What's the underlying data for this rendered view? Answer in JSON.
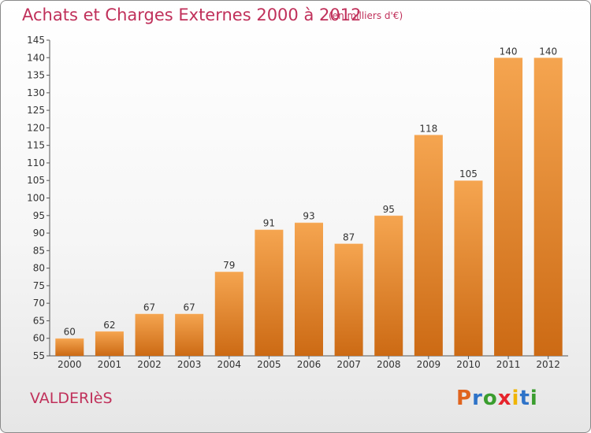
{
  "header": {
    "title": "Achats et Charges Externes 2000 à 2012",
    "unit": "(en milliers d'€)"
  },
  "footer": {
    "commune": "VALDERIèS",
    "brand": "Proxiti"
  },
  "colors": {
    "title": "#c0305a",
    "bar_top": "#f5a550",
    "bar_bottom": "#cc6a14",
    "brand_letters": [
      "#e0641e",
      "#2e73c8",
      "#3a9d2e",
      "#e6242c",
      "#f0b400",
      "#2e73c8",
      "#3a9d2e"
    ]
  },
  "chart_data": {
    "type": "bar",
    "title": "Achats et Charges Externes 2000 à 2012",
    "subtitle": "(en milliers d'€)",
    "xlabel": "",
    "ylabel": "",
    "categories": [
      "2000",
      "2001",
      "2002",
      "2003",
      "2004",
      "2005",
      "2006",
      "2007",
      "2008",
      "2009",
      "2010",
      "2011",
      "2012"
    ],
    "values": [
      60,
      62,
      67,
      67,
      79,
      91,
      93,
      87,
      95,
      118,
      105,
      140,
      140
    ],
    "ylim": [
      55,
      145
    ],
    "yticks": [
      55,
      60,
      65,
      70,
      75,
      80,
      85,
      90,
      95,
      100,
      105,
      110,
      115,
      120,
      125,
      130,
      135,
      140,
      145
    ],
    "grid": false,
    "legend": "none"
  }
}
